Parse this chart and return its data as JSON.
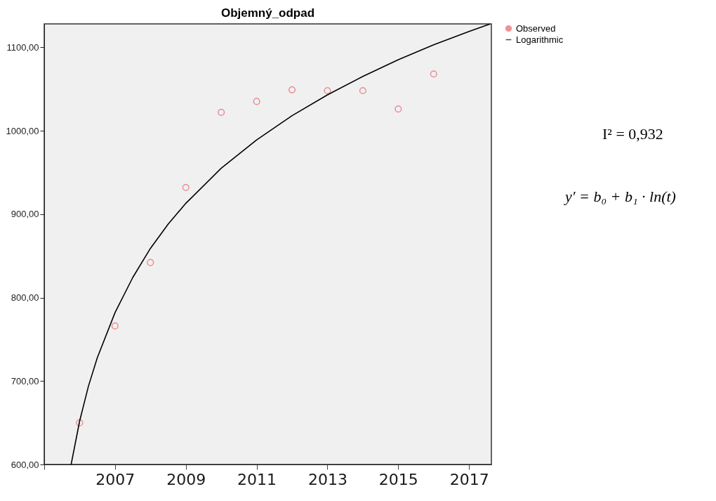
{
  "chart_data": {
    "type": "scatter",
    "title": "Objemný_odpad",
    "xlim": [
      2005,
      2017.63
    ],
    "xticks": [
      {
        "value": 2005,
        "label": null
      },
      2007,
      2009,
      2011,
      2013,
      2015,
      2017
    ],
    "ylim": [
      600,
      1128
    ],
    "yticks": [
      {
        "value": 600,
        "label": "600,00"
      },
      {
        "value": 700,
        "label": "700,00"
      },
      {
        "value": 800,
        "label": "800,00"
      },
      {
        "value": 900,
        "label": "900,00"
      },
      {
        "value": 1000,
        "label": "1000,00"
      },
      {
        "value": 1100,
        "label": "1100,00"
      }
    ],
    "legend": "top right",
    "series": [
      {
        "name": "Observed",
        "marker": "circle",
        "color": "#e8646c",
        "x": [
          2006,
          2007,
          2008,
          2009,
          2010,
          2011,
          2012,
          2013,
          2014,
          2015,
          2016
        ],
        "values": [
          650,
          766,
          842,
          932,
          1022,
          1035,
          1049,
          1048,
          1048,
          1026,
          1068
        ]
      },
      {
        "name": "Logarithmic",
        "type": "line",
        "marker": "none",
        "color": "#000000",
        "x": [
          2005.76,
          2006,
          2006.25,
          2006.5,
          2007,
          2007.5,
          2008,
          2008.5,
          2009,
          2010,
          2011,
          2012,
          2013,
          2014,
          2015,
          2016,
          2017,
          2017.6
        ],
        "values": [
          600,
          652,
          694,
          728,
          782,
          824,
          859,
          888,
          913,
          955,
          989,
          1018,
          1043,
          1065,
          1085,
          1103,
          1119,
          1128
        ]
      }
    ],
    "annotations": [
      "I² = 0,932",
      "y′ = b₀ + b₁ · ln(t)"
    ]
  }
}
